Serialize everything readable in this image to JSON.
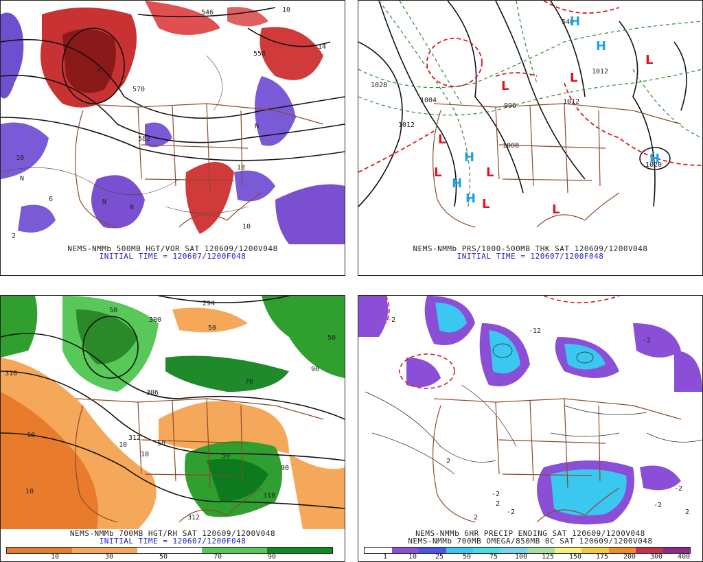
{
  "panels": {
    "tl": {
      "line1": "NEMS-NMMb 500MB HGT/VOR SAT 120609/1200V048",
      "line2": "INITIAL TIME = 120607/1200F048",
      "labels": [
        "546",
        "558",
        "570",
        "582",
        "10",
        "10",
        "10",
        "N",
        "N",
        "N",
        "N",
        "X",
        "14",
        "18",
        "2",
        "6"
      ]
    },
    "tr": {
      "line1": "NEMS-NMMb PRS/1000-500MB THK SAT 120609/1200V048",
      "line2": "INITIAL TIME = 120607/1200F048",
      "labels": [
        "1028",
        "1008",
        "996",
        "1004",
        "1012",
        "1012",
        "1020",
        "540",
        "1012"
      ],
      "symbols": [
        "H",
        "H",
        "H",
        "H",
        "H",
        "H",
        "L",
        "L",
        "L",
        "L",
        "L",
        "L",
        "L",
        "L"
      ]
    },
    "bl": {
      "line1": "NEMS-NMMb 700MB HGT/RH SAT 120609/1200V048",
      "line2": "INITIAL TIME = 120607/1200F048",
      "labels": [
        "294",
        "300",
        "306",
        "312",
        "318",
        "318",
        "312",
        "10",
        "10",
        "10",
        "50",
        "50",
        "50",
        "50",
        "50",
        "90",
        "90",
        "70",
        "10"
      ],
      "colorbar": {
        "ticks": [
          "10",
          "30",
          "50",
          "70",
          "90"
        ],
        "colors": [
          "#e87b2c",
          "#f5a85a",
          "#ffffff",
          "#58c858",
          "#0e8a1e"
        ]
      }
    },
    "br": {
      "line1": "NEMS-NMMb 6HR PRECIP ENDING SAT 120609/1200V048",
      "line2": "NEMS-NMMb 700MB OMEGA/850MB 0C SAT 120609/1200V048",
      "labels": [
        "-2",
        "2",
        "-2",
        "2",
        "-12",
        "-2",
        "-2",
        "-2",
        "2",
        "2",
        "-2"
      ],
      "colorbar": {
        "ticks": [
          "1",
          "10",
          "25",
          "50",
          "75",
          "100",
          "125",
          "150",
          "175",
          "200",
          "300",
          "400"
        ],
        "colors": [
          "#ffffff",
          "#8a4fd6",
          "#4b53e8",
          "#3ac8f0",
          "#46e0e0",
          "#7ad2f0",
          "#a8e0a0",
          "#f7f27a",
          "#f5c842",
          "#f08a2a",
          "#c8304a",
          "#8a2a8a"
        ]
      }
    }
  }
}
